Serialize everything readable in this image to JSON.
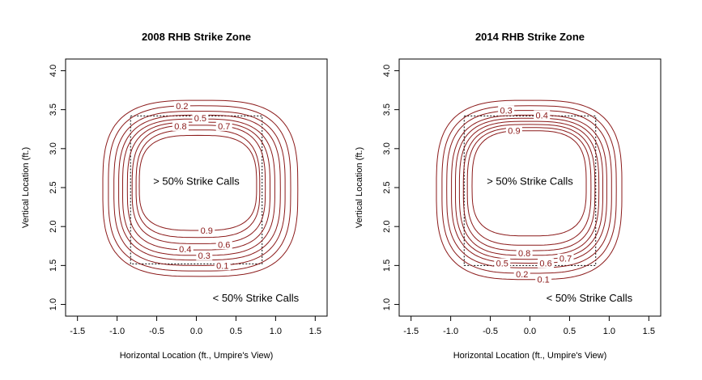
{
  "chart_data": [
    {
      "type": "contour",
      "title": "2008 RHB Strike Zone",
      "xlabel": "Horizontal Location (ft., Umpire's View)",
      "ylabel": "Vertical Location (ft.)",
      "xlim": [
        -1.65,
        1.65
      ],
      "ylim": [
        0.85,
        4.15
      ],
      "xticks": [
        "-1.5",
        "-1.0",
        "-0.5",
        "0.0",
        "0.5",
        "1.0",
        "1.5"
      ],
      "yticks": [
        "1.0",
        "1.5",
        "2.0",
        "2.5",
        "3.0",
        "3.5",
        "4.0"
      ],
      "line_color": "#8b1a1a",
      "rulebook_zone": {
        "x": [
          -0.83,
          0.83
        ],
        "y": [
          1.52,
          3.42
        ]
      },
      "contours": [
        {
          "level": "0.1",
          "center": [
            0.05,
            2.48
          ],
          "half_width": 1.23,
          "top": 3.62,
          "bottom": 1.36
        },
        {
          "level": "0.2",
          "center": [
            0.04,
            2.48
          ],
          "half_width": 1.15,
          "top": 3.55,
          "bottom": 1.43
        },
        {
          "level": "0.3",
          "center": [
            0.04,
            2.48
          ],
          "half_width": 1.08,
          "top": 3.48,
          "bottom": 1.5
        },
        {
          "level": "0.4",
          "center": [
            0.04,
            2.48
          ],
          "half_width": 1.02,
          "top": 3.43,
          "bottom": 1.57
        },
        {
          "level": "0.5",
          "center": [
            0.03,
            2.48
          ],
          "half_width": 0.96,
          "top": 3.38,
          "bottom": 1.63
        },
        {
          "level": "0.6",
          "center": [
            0.03,
            2.48
          ],
          "half_width": 0.9,
          "top": 3.34,
          "bottom": 1.7
        },
        {
          "level": "0.7",
          "center": [
            0.03,
            2.49
          ],
          "half_width": 0.84,
          "top": 3.3,
          "bottom": 1.78
        },
        {
          "level": "0.8",
          "center": [
            0.02,
            2.5
          ],
          "half_width": 0.78,
          "top": 3.24,
          "bottom": 1.86
        },
        {
          "level": "0.9",
          "center": [
            0.02,
            2.52
          ],
          "half_width": 0.74,
          "top": 3.17,
          "bottom": 1.95
        }
      ],
      "contour_labels": [
        {
          "text": "0.2",
          "x": -0.18,
          "y": 3.55
        },
        {
          "text": "0.5",
          "x": 0.05,
          "y": 3.39
        },
        {
          "text": "0.7",
          "x": 0.35,
          "y": 3.29
        },
        {
          "text": "0.8",
          "x": -0.2,
          "y": 3.29
        },
        {
          "text": "0.9",
          "x": 0.13,
          "y": 1.95
        },
        {
          "text": "0.6",
          "x": 0.35,
          "y": 1.77
        },
        {
          "text": "0.4",
          "x": -0.14,
          "y": 1.71
        },
        {
          "text": "0.3",
          "x": 0.1,
          "y": 1.63
        },
        {
          "text": "0.1",
          "x": 0.33,
          "y": 1.5
        }
      ],
      "annotations": [
        {
          "text": "> 50% Strike Calls",
          "x": 0.0,
          "y": 2.58
        },
        {
          "text": "< 50% Strike Calls",
          "x": 0.75,
          "y": 1.08
        }
      ]
    },
    {
      "type": "contour",
      "title": "2014 RHB Strike Zone",
      "xlabel": "Horizontal Location (ft., Umpire's View)",
      "ylabel": "Vertical Location (ft.)",
      "xlim": [
        -1.65,
        1.65
      ],
      "ylim": [
        0.85,
        4.15
      ],
      "xticks": [
        "-1.5",
        "-1.0",
        "-0.5",
        "0.0",
        "0.5",
        "1.0",
        "1.5"
      ],
      "yticks": [
        "1.0",
        "1.5",
        "2.0",
        "2.5",
        "3.0",
        "3.5",
        "4.0"
      ],
      "line_color": "#8b1a1a",
      "rulebook_zone": {
        "x": [
          -0.83,
          0.83
        ],
        "y": [
          1.5,
          3.42
        ]
      },
      "contours": [
        {
          "level": "0.1",
          "center": [
            -0.01,
            2.48
          ],
          "half_width": 1.17,
          "top": 3.62,
          "bottom": 1.32
        },
        {
          "level": "0.2",
          "center": [
            -0.01,
            2.48
          ],
          "half_width": 1.1,
          "top": 3.55,
          "bottom": 1.4
        },
        {
          "level": "0.3",
          "center": [
            -0.01,
            2.48
          ],
          "half_width": 1.04,
          "top": 3.49,
          "bottom": 1.47
        },
        {
          "level": "0.4",
          "center": [
            -0.01,
            2.48
          ],
          "half_width": 0.98,
          "top": 3.43,
          "bottom": 1.53
        },
        {
          "level": "0.5",
          "center": [
            -0.01,
            2.48
          ],
          "half_width": 0.93,
          "top": 3.39,
          "bottom": 1.58
        },
        {
          "level": "0.6",
          "center": [
            -0.01,
            2.48
          ],
          "half_width": 0.88,
          "top": 3.35,
          "bottom": 1.63
        },
        {
          "level": "0.7",
          "center": [
            -0.01,
            2.48
          ],
          "half_width": 0.83,
          "top": 3.31,
          "bottom": 1.69
        },
        {
          "level": "0.8",
          "center": [
            -0.01,
            2.5
          ],
          "half_width": 0.78,
          "top": 3.27,
          "bottom": 1.76
        },
        {
          "level": "0.9",
          "center": [
            -0.01,
            2.52
          ],
          "half_width": 0.72,
          "top": 3.23,
          "bottom": 1.88
        }
      ],
      "contour_labels": [
        {
          "text": "0.3",
          "x": -0.3,
          "y": 3.49
        },
        {
          "text": "0.4",
          "x": 0.15,
          "y": 3.43
        },
        {
          "text": "0.9",
          "x": -0.2,
          "y": 3.23
        },
        {
          "text": "0.8",
          "x": -0.07,
          "y": 1.66
        },
        {
          "text": "0.7",
          "x": 0.45,
          "y": 1.59
        },
        {
          "text": "0.5",
          "x": -0.35,
          "y": 1.53
        },
        {
          "text": "0.6",
          "x": 0.2,
          "y": 1.53
        },
        {
          "text": "0.2",
          "x": -0.1,
          "y": 1.39
        },
        {
          "text": "0.1",
          "x": 0.17,
          "y": 1.32
        }
      ],
      "annotations": [
        {
          "text": "> 50% Strike Calls",
          "x": 0.0,
          "y": 2.58
        },
        {
          "text": "< 50% Strike Calls",
          "x": 0.75,
          "y": 1.08
        }
      ]
    }
  ]
}
